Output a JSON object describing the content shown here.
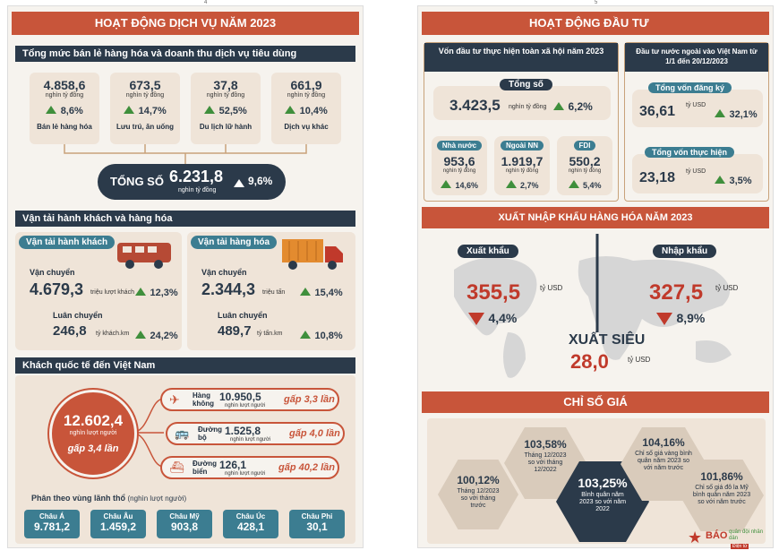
{
  "page_numbers": {
    "left": "4",
    "right": "5"
  },
  "left": {
    "title": "HOẠT ĐỘNG DỊCH VỤ NĂM 2023",
    "retail": {
      "heading": "Tổng mức bán lẻ hàng hóa và doanh thu dịch vụ tiêu dùng",
      "items": [
        {
          "value": "4.858,6",
          "unit": "nghìn tỷ đồng",
          "pct": "8,6%",
          "label": "Bán lẻ hàng hóa"
        },
        {
          "value": "673,5",
          "unit": "nghìn tỷ đồng",
          "pct": "14,7%",
          "label": "Lưu trú, ăn uống"
        },
        {
          "value": "37,8",
          "unit": "nghìn tỷ đồng",
          "pct": "52,5%",
          "label": "Du lịch lữ hành"
        },
        {
          "value": "661,9",
          "unit": "nghìn tỷ đồng",
          "pct": "10,4%",
          "label": "Dịch vụ khác"
        }
      ],
      "total_label": "TỔNG SỐ",
      "total_value": "6.231,8",
      "total_unit": "nghìn tỷ đồng",
      "total_pct": "9,6%"
    },
    "transport": {
      "heading": "Vận tải hành khách và hàng hóa",
      "passenger": {
        "title": "Vận tải hành khách",
        "carry_label": "Vận chuyển",
        "carry_value": "4.679,3",
        "carry_unit": "triệu lượt khách",
        "carry_pct": "12,3%",
        "turnover_label": "Luân chuyển",
        "turnover_value": "246,8",
        "turnover_unit": "tỷ khách.km",
        "turnover_pct": "24,2%"
      },
      "cargo": {
        "title": "Vận tải hàng hóa",
        "carry_label": "Vận chuyển",
        "carry_value": "2.344,3",
        "carry_unit": "triệu tấn",
        "carry_pct": "15,4%",
        "turnover_label": "Luân chuyển",
        "turnover_value": "489,7",
        "turnover_unit": "tỷ tấn.km",
        "turnover_pct": "10,8%"
      }
    },
    "visitors": {
      "heading": "Khách quốc tế đến Việt Nam",
      "total_value": "12.602,4",
      "total_unit": "nghìn lượt người",
      "total_times": "gấp 3,4 lần",
      "modes": [
        {
          "label": "Hàng không",
          "value": "10.950,5",
          "unit": "nghìn lượt người",
          "times": "gấp 3,3 lần"
        },
        {
          "label": "Đường bộ",
          "value": "1.525,8",
          "unit": "nghìn lượt người",
          "times": "gấp 4,0 lần"
        },
        {
          "label": "Đường biển",
          "value": "126,1",
          "unit": "nghìn lượt người",
          "times": "gấp 40,2 lần"
        }
      ],
      "region_heading": "Phân theo vùng lãnh thổ",
      "region_unit": "(nghìn lượt người)",
      "regions": [
        {
          "name": "Châu Á",
          "value": "9.781,2"
        },
        {
          "name": "Châu Âu",
          "value": "1.459,2"
        },
        {
          "name": "Châu Mỹ",
          "value": "903,8"
        },
        {
          "name": "Châu Úc",
          "value": "428,1"
        },
        {
          "name": "Châu Phi",
          "value": "30,1"
        }
      ]
    }
  },
  "right": {
    "invest_title": "HOẠT ĐỘNG ĐẦU TƯ",
    "social": {
      "heading": "Vốn đầu tư thực hiện toàn xã hội năm 2023",
      "total_label": "Tổng số",
      "total_value": "3.423,5",
      "total_unit": "nghìn tỷ đồng",
      "total_pct": "6,2%",
      "parts": [
        {
          "label": "Nhà nước",
          "value": "953,6",
          "unit": "nghìn tỷ đồng",
          "pct": "14,6%"
        },
        {
          "label": "Ngoài NN",
          "value": "1.919,7",
          "unit": "nghìn tỷ đồng",
          "pct": "2,7%"
        },
        {
          "label": "FDI",
          "value": "550,2",
          "unit": "nghìn tỷ đồng",
          "pct": "5,4%"
        }
      ]
    },
    "fdi": {
      "heading": "Đầu tư nước ngoài vào Việt Nam từ 1/1 đến 20/12/2023",
      "registered_label": "Tổng vốn đăng ký",
      "registered_value": "36,61",
      "registered_unit": "tỷ USD",
      "registered_pct": "32,1%",
      "realized_label": "Tổng vốn thực hiện",
      "realized_value": "23,18",
      "realized_unit": "tỷ USD",
      "realized_pct": "3,5%"
    },
    "trade": {
      "title": "XUẤT NHẬP KHẨU HÀNG HÓA NĂM 2023",
      "export_label": "Xuất khẩu",
      "export_value": "355,5",
      "export_unit": "tỷ USD",
      "export_pct": "4,4%",
      "import_label": "Nhập khẩu",
      "import_value": "327,5",
      "import_unit": "tỷ USD",
      "import_pct": "8,9%",
      "surplus_label": "XUẤT SIÊU",
      "surplus_value": "28,0",
      "surplus_unit": "tỷ USD"
    },
    "price": {
      "title": "CHỈ SỐ GIÁ",
      "hexes": [
        {
          "value": "100,12%",
          "text": "Tháng 12/2023 so với tháng trước"
        },
        {
          "value": "103,58%",
          "text": "Tháng 12/2023 so với tháng 12/2022"
        },
        {
          "value": "103,25%",
          "text": "Bình quân năm 2023 so với năm 2022"
        },
        {
          "value": "104,16%",
          "text": "Chỉ số giá vàng bình quân năm 2023 so với năm trước"
        },
        {
          "value": "101,86%",
          "text": "Chỉ số giá đô la Mỹ bình quân năm 2023 so với năm trước"
        }
      ]
    },
    "logo": {
      "text": "BÁO",
      "sub": "quân đội nhân dân",
      "tag": "Điện tử"
    }
  },
  "colors": {
    "accent": "#c8553a",
    "navy": "#2b3a4a",
    "green": "#3f8f3c",
    "red": "#c03a2b",
    "beige": "#efe4d8"
  }
}
